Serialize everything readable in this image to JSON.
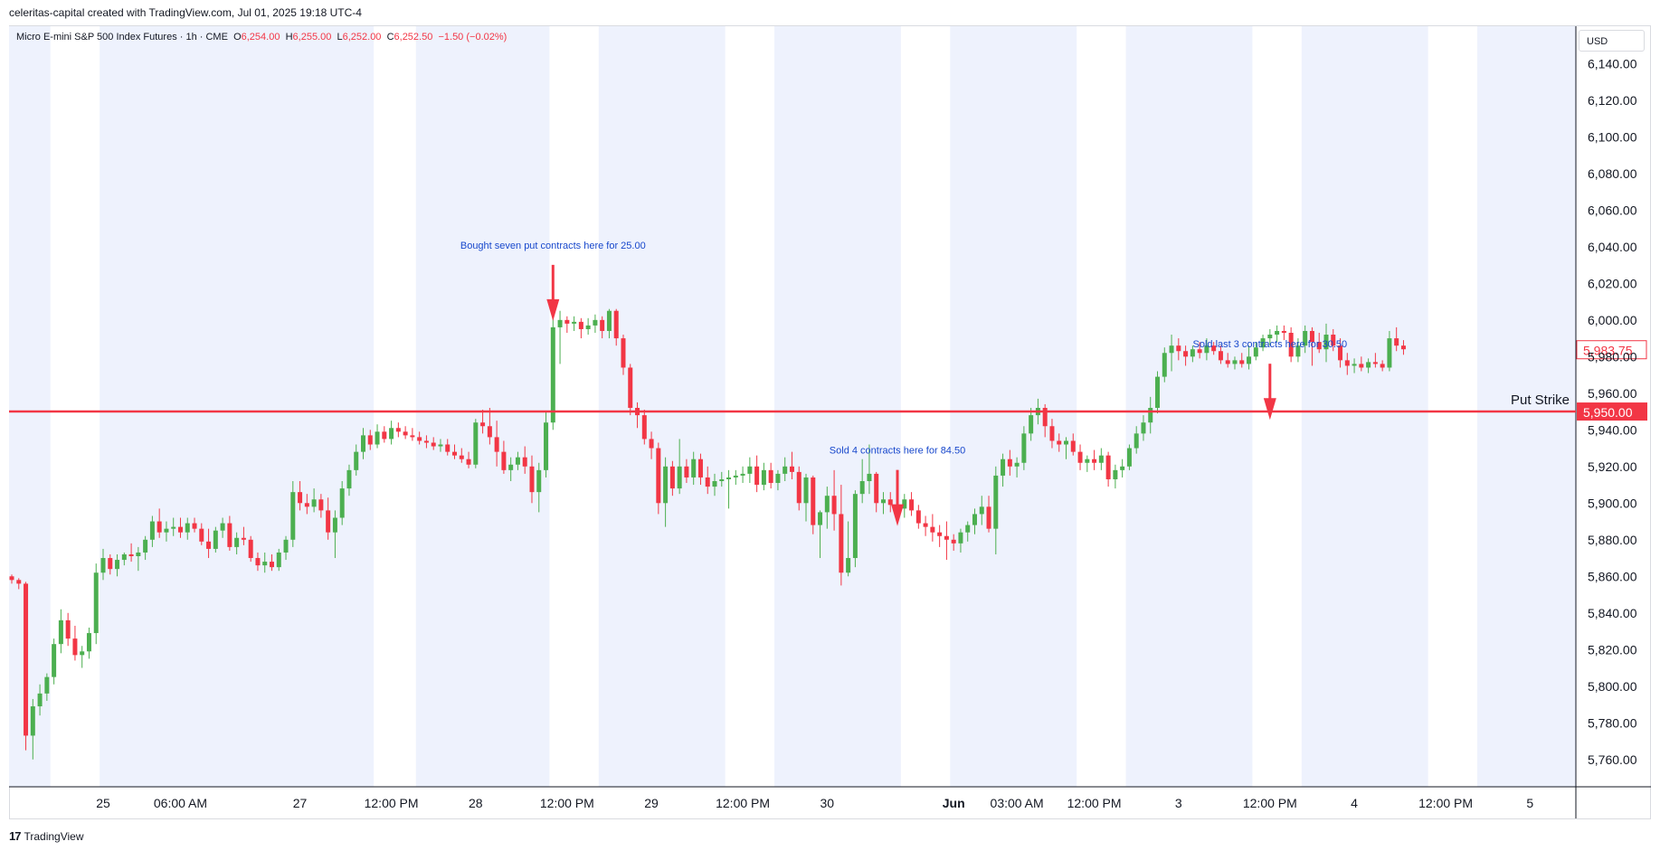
{
  "header": {
    "attribution": "celeritas-capital created with TradingView.com, Jul 01, 2025 19:18 UTC-4"
  },
  "legend": {
    "symbol": "Micro E-mini S&P 500 Index Futures · 1h · CME",
    "o_label": "O",
    "o_value": "6,254.00",
    "h_label": "H",
    "h_value": "6,255.00",
    "l_label": "L",
    "l_value": "6,252.00",
    "c_label": "C",
    "c_value": "6,252.50",
    "change": "−1.50 (−0.02%)"
  },
  "price_axis": {
    "currency": "USD"
  },
  "footer": {
    "brand": "TradingView",
    "logo_glyph": "17"
  },
  "colors": {
    "up": "#4caf50",
    "down": "#f23645",
    "session_band": "#eef2fd",
    "line": "#f23645",
    "annotation": "#1848cc"
  },
  "chart_data": {
    "type": "candlestick",
    "y_axis": {
      "range": [
        5750,
        6155
      ],
      "ticks": [
        "5,760.00",
        "5,780.00",
        "5,800.00",
        "5,820.00",
        "5,840.00",
        "5,860.00",
        "5,880.00",
        "5,900.00",
        "5,920.00",
        "5,940.00",
        "5,960.00",
        "5,980.00",
        "6,000.00",
        "6,020.00",
        "6,040.00",
        "6,060.00",
        "6,080.00",
        "6,100.00",
        "6,120.00",
        "6,140.00"
      ],
      "tick_values": [
        5760,
        5780,
        5800,
        5820,
        5840,
        5860,
        5880,
        5900,
        5920,
        5940,
        5960,
        5980,
        6000,
        6020,
        6040,
        6060,
        6080,
        6100,
        6120,
        6140
      ]
    },
    "x_axis": {
      "tick_labels": [
        {
          "text": "25",
          "idx": 13,
          "bold": false
        },
        {
          "text": "06:00 AM",
          "idx": 24,
          "bold": false
        },
        {
          "text": "27",
          "idx": 41,
          "bold": false
        },
        {
          "text": "12:00 PM",
          "idx": 54,
          "bold": false
        },
        {
          "text": "28",
          "idx": 66,
          "bold": false
        },
        {
          "text": "12:00 PM",
          "idx": 79,
          "bold": false
        },
        {
          "text": "29",
          "idx": 91,
          "bold": false
        },
        {
          "text": "12:00 PM",
          "idx": 104,
          "bold": false
        },
        {
          "text": "30",
          "idx": 116,
          "bold": false
        },
        {
          "text": "Jun",
          "idx": 134,
          "bold": true
        },
        {
          "text": "03:00 AM",
          "idx": 143,
          "bold": false
        },
        {
          "text": "12:00 PM",
          "idx": 154,
          "bold": false
        },
        {
          "text": "3",
          "idx": 166,
          "bold": false
        },
        {
          "text": "12:00 PM",
          "idx": 179,
          "bold": false
        },
        {
          "text": "4",
          "idx": 191,
          "bold": false
        },
        {
          "text": "12:00 PM",
          "idx": 204,
          "bold": false
        },
        {
          "text": "5",
          "idx": 216,
          "bold": false
        }
      ]
    },
    "session_bands": [
      [
        0,
        5
      ],
      [
        13,
        51
      ],
      [
        58,
        76
      ],
      [
        84,
        101
      ],
      [
        109,
        126
      ],
      [
        134,
        151
      ],
      [
        159,
        176
      ],
      [
        184,
        201
      ],
      [
        209,
        226
      ]
    ],
    "candles": [
      [
        5860,
        5861,
        5856,
        5858
      ],
      [
        5858,
        5859,
        5853,
        5856
      ],
      [
        5856,
        5857,
        5765,
        5773
      ],
      [
        5773,
        5793,
        5760,
        5789
      ],
      [
        5789,
        5801,
        5784,
        5796
      ],
      [
        5796,
        5807,
        5792,
        5805
      ],
      [
        5805,
        5826,
        5801,
        5823
      ],
      [
        5823,
        5842,
        5818,
        5836
      ],
      [
        5836,
        5840,
        5822,
        5826
      ],
      [
        5826,
        5833,
        5814,
        5817
      ],
      [
        5817,
        5822,
        5810,
        5819
      ],
      [
        5819,
        5832,
        5815,
        5829
      ],
      [
        5829,
        5867,
        5823,
        5862
      ],
      [
        5862,
        5875,
        5858,
        5870
      ],
      [
        5870,
        5872,
        5861,
        5864
      ],
      [
        5864,
        5872,
        5860,
        5869
      ],
      [
        5869,
        5873,
        5866,
        5872
      ],
      [
        5872,
        5878,
        5868,
        5871
      ],
      [
        5871,
        5876,
        5863,
        5873
      ],
      [
        5873,
        5882,
        5869,
        5880
      ],
      [
        5880,
        5893,
        5876,
        5890
      ],
      [
        5890,
        5897,
        5881,
        5884
      ],
      [
        5884,
        5890,
        5879,
        5886
      ],
      [
        5886,
        5892,
        5882,
        5887
      ],
      [
        5887,
        5892,
        5881,
        5884
      ],
      [
        5884,
        5892,
        5880,
        5889
      ],
      [
        5889,
        5892,
        5884,
        5886
      ],
      [
        5886,
        5889,
        5877,
        5879
      ],
      [
        5879,
        5886,
        5870,
        5875
      ],
      [
        5875,
        5887,
        5873,
        5885
      ],
      [
        5885,
        5892,
        5881,
        5889
      ],
      [
        5889,
        5893,
        5874,
        5876
      ],
      [
        5876,
        5884,
        5872,
        5881
      ],
      [
        5881,
        5887,
        5877,
        5880
      ],
      [
        5880,
        5882,
        5868,
        5870
      ],
      [
        5870,
        5873,
        5863,
        5866
      ],
      [
        5866,
        5873,
        5862,
        5868
      ],
      [
        5868,
        5872,
        5863,
        5865
      ],
      [
        5865,
        5875,
        5863,
        5873
      ],
      [
        5873,
        5882,
        5869,
        5880
      ],
      [
        5880,
        5912,
        5876,
        5906
      ],
      [
        5906,
        5912,
        5896,
        5900
      ],
      [
        5900,
        5905,
        5894,
        5898
      ],
      [
        5898,
        5908,
        5895,
        5902
      ],
      [
        5902,
        5905,
        5892,
        5896
      ],
      [
        5896,
        5903,
        5880,
        5884
      ],
      [
        5884,
        5896,
        5870,
        5892
      ],
      [
        5892,
        5912,
        5888,
        5908
      ],
      [
        5908,
        5921,
        5904,
        5918
      ],
      [
        5918,
        5932,
        5915,
        5928
      ],
      [
        5928,
        5941,
        5924,
        5937
      ],
      [
        5937,
        5940,
        5929,
        5932
      ],
      [
        5932,
        5943,
        5930,
        5939
      ],
      [
        5939,
        5942,
        5933,
        5935
      ],
      [
        5935,
        5945,
        5932,
        5941
      ],
      [
        5941,
        5944,
        5936,
        5939
      ],
      [
        5939,
        5942,
        5935,
        5937
      ],
      [
        5937,
        5941,
        5934,
        5936
      ],
      [
        5936,
        5939,
        5932,
        5934
      ],
      [
        5934,
        5937,
        5930,
        5933
      ],
      [
        5933,
        5936,
        5929,
        5931
      ],
      [
        5931,
        5935,
        5928,
        5932
      ],
      [
        5932,
        5935,
        5926,
        5928
      ],
      [
        5928,
        5932,
        5924,
        5926
      ],
      [
        5926,
        5930,
        5922,
        5924
      ],
      [
        5924,
        5928,
        5919,
        5921
      ],
      [
        5921,
        5946,
        5919,
        5944
      ],
      [
        5944,
        5951,
        5938,
        5942
      ],
      [
        5942,
        5952,
        5932,
        5936
      ],
      [
        5936,
        5945,
        5920,
        5928
      ],
      [
        5928,
        5934,
        5916,
        5918
      ],
      [
        5918,
        5925,
        5912,
        5921
      ],
      [
        5921,
        5928,
        5918,
        5925
      ],
      [
        5925,
        5931,
        5916,
        5920
      ],
      [
        5920,
        5926,
        5900,
        5906
      ],
      [
        5906,
        5922,
        5895,
        5918
      ],
      [
        5918,
        5950,
        5914,
        5944
      ],
      [
        5944,
        6001,
        5940,
        5996
      ],
      [
        5996,
        6005,
        5976,
        6000
      ],
      [
        6000,
        6002,
        5993,
        5998
      ],
      [
        5998,
        6002,
        5994,
        5999
      ],
      [
        5999,
        6001,
        5990,
        5995
      ],
      [
        5995,
        6001,
        5992,
        5997
      ],
      [
        5997,
        6003,
        5993,
        6000
      ],
      [
        6000,
        6002,
        5990,
        5994
      ],
      [
        5994,
        6006,
        5990,
        6005
      ],
      [
        6005,
        6006,
        5986,
        5990
      ],
      [
        5990,
        5992,
        5970,
        5974
      ],
      [
        5974,
        5976,
        5948,
        5952
      ],
      [
        5952,
        5955,
        5941,
        5948
      ],
      [
        5948,
        5951,
        5932,
        5935
      ],
      [
        5935,
        5939,
        5924,
        5930
      ],
      [
        5930,
        5933,
        5894,
        5900
      ],
      [
        5900,
        5925,
        5887,
        5920
      ],
      [
        5920,
        5923,
        5904,
        5908
      ],
      [
        5908,
        5935,
        5905,
        5920
      ],
      [
        5920,
        5924,
        5911,
        5914
      ],
      [
        5914,
        5928,
        5910,
        5924
      ],
      [
        5924,
        5927,
        5910,
        5914
      ],
      [
        5914,
        5920,
        5905,
        5909
      ],
      [
        5909,
        5916,
        5904,
        5912
      ],
      [
        5912,
        5917,
        5909,
        5913
      ],
      [
        5913,
        5918,
        5897,
        5914
      ],
      [
        5914,
        5918,
        5910,
        5915
      ],
      [
        5915,
        5920,
        5911,
        5916
      ],
      [
        5916,
        5925,
        5911,
        5920
      ],
      [
        5920,
        5926,
        5906,
        5910
      ],
      [
        5910,
        5922,
        5907,
        5918
      ],
      [
        5918,
        5922,
        5908,
        5911
      ],
      [
        5911,
        5918,
        5907,
        5916
      ],
      [
        5916,
        5925,
        5912,
        5920
      ],
      [
        5920,
        5928,
        5913,
        5917
      ],
      [
        5917,
        5920,
        5896,
        5900
      ],
      [
        5900,
        5916,
        5890,
        5914
      ],
      [
        5914,
        5915,
        5883,
        5888
      ],
      [
        5888,
        5896,
        5870,
        5895
      ],
      [
        5895,
        5909,
        5886,
        5904
      ],
      [
        5904,
        5918,
        5885,
        5894
      ],
      [
        5894,
        5910,
        5855,
        5862
      ],
      [
        5862,
        5890,
        5860,
        5870
      ],
      [
        5870,
        5907,
        5865,
        5905
      ],
      [
        5905,
        5924,
        5900,
        5912
      ],
      [
        5912,
        5932,
        5905,
        5916
      ],
      [
        5916,
        5917,
        5895,
        5900
      ],
      [
        5900,
        5906,
        5894,
        5902
      ],
      [
        5902,
        5906,
        5895,
        5899
      ],
      [
        5899,
        5904,
        5893,
        5897
      ],
      [
        5897,
        5905,
        5892,
        5902
      ],
      [
        5902,
        5906,
        5893,
        5896
      ],
      [
        5896,
        5899,
        5886,
        5889
      ],
      [
        5889,
        5893,
        5882,
        5887
      ],
      [
        5887,
        5894,
        5879,
        5884
      ],
      [
        5884,
        5888,
        5876,
        5882
      ],
      [
        5882,
        5890,
        5869,
        5880
      ],
      [
        5880,
        5883,
        5874,
        5878
      ],
      [
        5878,
        5886,
        5873,
        5884
      ],
      [
        5884,
        5890,
        5879,
        5888
      ],
      [
        5888,
        5897,
        5883,
        5894
      ],
      [
        5894,
        5904,
        5888,
        5898
      ],
      [
        5898,
        5904,
        5884,
        5886
      ],
      [
        5886,
        5920,
        5872,
        5915
      ],
      [
        5915,
        5927,
        5909,
        5924
      ],
      [
        5924,
        5929,
        5915,
        5920
      ],
      [
        5920,
        5925,
        5914,
        5922
      ],
      [
        5922,
        5942,
        5918,
        5938
      ],
      [
        5938,
        5952,
        5934,
        5948
      ],
      [
        5948,
        5957,
        5943,
        5952
      ],
      [
        5952,
        5954,
        5936,
        5942
      ],
      [
        5942,
        5946,
        5930,
        5934
      ],
      [
        5934,
        5938,
        5928,
        5932
      ],
      [
        5932,
        5936,
        5924,
        5934
      ],
      [
        5934,
        5938,
        5926,
        5928
      ],
      [
        5928,
        5932,
        5918,
        5922
      ],
      [
        5922,
        5926,
        5917,
        5924
      ],
      [
        5924,
        5929,
        5918,
        5922
      ],
      [
        5922,
        5930,
        5918,
        5926
      ],
      [
        5926,
        5928,
        5909,
        5913
      ],
      [
        5913,
        5921,
        5908,
        5918
      ],
      [
        5918,
        5924,
        5914,
        5920
      ],
      [
        5920,
        5932,
        5918,
        5930
      ],
      [
        5930,
        5942,
        5927,
        5938
      ],
      [
        5938,
        5948,
        5934,
        5944
      ],
      [
        5944,
        5958,
        5938,
        5952
      ],
      [
        5952,
        5972,
        5949,
        5969
      ],
      [
        5969,
        5985,
        5966,
        5982
      ],
      [
        5982,
        5992,
        5972,
        5986
      ],
      [
        5986,
        5990,
        5978,
        5983
      ],
      [
        5983,
        5986,
        5975,
        5980
      ],
      [
        5980,
        5986,
        5977,
        5984
      ],
      [
        5984,
        5988,
        5979,
        5982
      ],
      [
        5982,
        5990,
        5978,
        5986
      ],
      [
        5986,
        5988,
        5981,
        5983
      ],
      [
        5983,
        5986,
        5976,
        5978
      ],
      [
        5978,
        5982,
        5974,
        5976
      ],
      [
        5976,
        5980,
        5973,
        5978
      ],
      [
        5978,
        5982,
        5974,
        5976
      ],
      [
        5976,
        5986,
        5973,
        5980
      ],
      [
        5980,
        5988,
        5978,
        5985
      ],
      [
        5985,
        5992,
        5983,
        5990
      ],
      [
        5990,
        5995,
        5986,
        5992
      ],
      [
        5992,
        5997,
        5988,
        5994
      ],
      [
        5994,
        5997,
        5989,
        5993
      ],
      [
        5993,
        5996,
        5977,
        5980
      ],
      [
        5980,
        5990,
        5977,
        5986
      ],
      [
        5986,
        5997,
        5982,
        5994
      ],
      [
        5994,
        5996,
        5975,
        5988
      ],
      [
        5988,
        5993,
        5982,
        5984
      ],
      [
        5984,
        5998,
        5977,
        5992
      ],
      [
        5992,
        5995,
        5983,
        5986
      ],
      [
        5986,
        5990,
        5974,
        5978
      ],
      [
        5978,
        5982,
        5970,
        5975
      ],
      [
        5975,
        5979,
        5971,
        5976
      ],
      [
        5976,
        5980,
        5972,
        5974
      ],
      [
        5974,
        5979,
        5971,
        5977
      ],
      [
        5977,
        5982,
        5974,
        5976
      ],
      [
        5976,
        5978,
        5972,
        5974
      ],
      [
        5974,
        5994,
        5972,
        5990
      ],
      [
        5990,
        5996,
        5983,
        5986
      ],
      [
        5986,
        5989,
        5981,
        5984
      ]
    ],
    "lines": [
      {
        "label": "Put Strike",
        "price": 5950,
        "price_label": "5,950.00"
      }
    ],
    "last_price": {
      "price": 5983.75,
      "label": "5,983.75"
    },
    "annotations": [
      {
        "text": "Bought seven put contracts here for 25.00",
        "idx": 77,
        "price": 6039
      },
      {
        "text": "Sold 4 contracts here for 84.50",
        "idx": 126,
        "price": 5927
      },
      {
        "text": "Sold last 3 contracts here for 30.50",
        "idx": 179,
        "price": 5985
      }
    ]
  }
}
